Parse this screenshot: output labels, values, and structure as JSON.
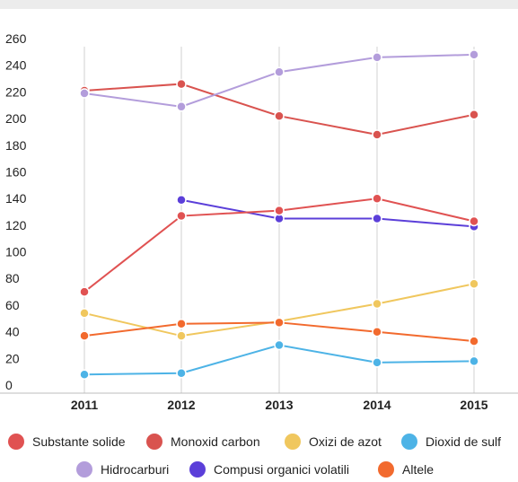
{
  "chart_data": {
    "type": "line",
    "title": "",
    "xlabel": "",
    "ylabel": "",
    "x": [
      "2011",
      "2012",
      "2013",
      "2014",
      "2015"
    ],
    "ylim": [
      0,
      260
    ],
    "yticks": [
      0,
      20,
      40,
      60,
      80,
      100,
      120,
      140,
      160,
      180,
      200,
      220,
      240,
      260
    ],
    "grid": "vertical",
    "legend_position": "bottom",
    "series": [
      {
        "name": "Substante solide",
        "color": "#e05252",
        "values": [
          null,
          null,
          null,
          null,
          null
        ]
      },
      {
        "name": "Monoxid carbon",
        "color": "#d9534f",
        "values": [
          227,
          232,
          208,
          194,
          209
        ]
      },
      {
        "name": "Oxizi de azot",
        "color": "#f0c75e",
        "values": [
          60,
          43,
          54,
          67,
          82
        ]
      },
      {
        "name": "Dioxid de sulf",
        "color": "#4db3e6",
        "values": [
          14,
          15,
          36,
          23,
          24
        ]
      },
      {
        "name": "Hidrocarburi",
        "color": "#b39ddb",
        "values": [
          225,
          215,
          241,
          252,
          254
        ]
      },
      {
        "name": "Compusi organici volatili",
        "color": "#5b3fd9",
        "values": [
          null,
          145,
          131,
          131,
          125
        ]
      },
      {
        "name": "Altele",
        "color": "#f26a2e",
        "values": [
          43,
          52,
          53,
          46,
          39
        ]
      },
      {
        "name": "",
        "color": "#e05252",
        "values": [
          76,
          133,
          137,
          146,
          129
        ]
      }
    ]
  }
}
